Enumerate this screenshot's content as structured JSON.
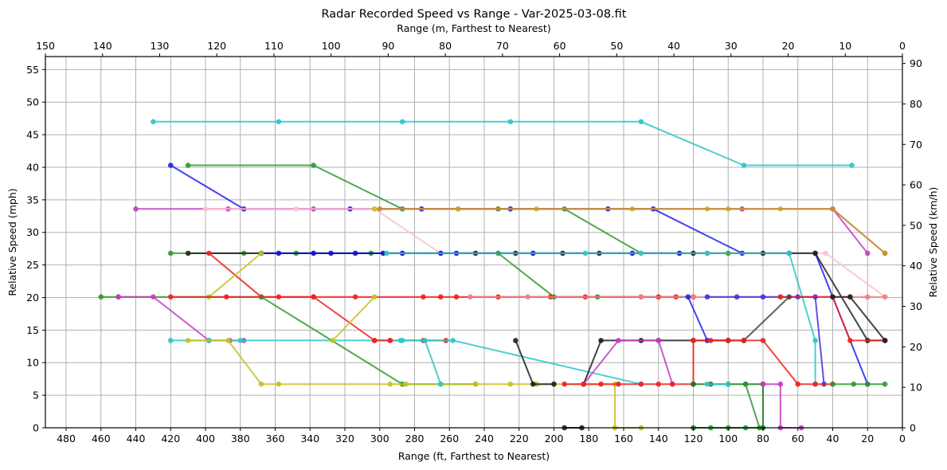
{
  "chart_data": {
    "type": "line",
    "title": "Radar Recorded Speed vs Range - Var-2025-03-08.fit",
    "xlabel": "Range (ft, Farthest to Nearest)",
    "xlabel_top": "Range (m, Farthest to Nearest)",
    "ylabel": "Relative Speed (mph)",
    "ylabel_right": "Relative Speed (km/h)",
    "xlim": [
      492,
      0
    ],
    "ylim": [
      0,
      57
    ],
    "xlim_top_m": [
      150,
      0
    ],
    "ylim_right_kmh": [
      0,
      91.7
    ],
    "x_ticks": [
      480,
      460,
      440,
      420,
      400,
      380,
      360,
      340,
      320,
      300,
      280,
      260,
      240,
      220,
      200,
      180,
      160,
      140,
      120,
      100,
      80,
      60,
      40,
      20,
      0
    ],
    "x_ticks_top": [
      150,
      140,
      130,
      120,
      110,
      100,
      90,
      80,
      70,
      60,
      50,
      40,
      30,
      20,
      10,
      0
    ],
    "y_ticks": [
      0,
      5,
      10,
      15,
      20,
      25,
      30,
      35,
      40,
      45,
      50,
      55
    ],
    "y_ticks_right": [
      0,
      10,
      20,
      30,
      40,
      50,
      60,
      70,
      80,
      90
    ],
    "grid": true,
    "legend": "none",
    "series": [
      {
        "name": "track-1",
        "color": "#2ec7c7",
        "points": [
          [
            430,
            47.0
          ],
          [
            358,
            47.0
          ],
          [
            287,
            47.0
          ],
          [
            225,
            47.0
          ],
          [
            150,
            47.0
          ],
          [
            91,
            40.3
          ],
          [
            29,
            40.3
          ]
        ]
      },
      {
        "name": "track-2",
        "color": "#2f9a2f",
        "points": [
          [
            410,
            40.3
          ],
          [
            338,
            40.3
          ],
          [
            287,
            33.6
          ],
          [
            232,
            33.6
          ],
          [
            194,
            33.6
          ],
          [
            150,
            26.8
          ],
          [
            112,
            26.8
          ],
          [
            100,
            26.8
          ]
        ]
      },
      {
        "name": "track-3",
        "color": "#2222ee",
        "points": [
          [
            420,
            40.3
          ],
          [
            378,
            33.6
          ],
          [
            317,
            33.6
          ],
          [
            276,
            33.6
          ],
          [
            225,
            33.6
          ],
          [
            169,
            33.6
          ],
          [
            143,
            33.6
          ],
          [
            92,
            26.8
          ],
          [
            65,
            26.8
          ],
          [
            50,
            26.8
          ],
          [
            40,
            20.1
          ],
          [
            20,
            6.7
          ]
        ]
      },
      {
        "name": "track-4",
        "color": "#c43cc4",
        "points": [
          [
            440,
            33.6
          ],
          [
            387,
            33.6
          ],
          [
            338,
            33.6
          ],
          [
            255,
            33.6
          ],
          [
            92,
            33.6
          ],
          [
            40,
            33.6
          ],
          [
            20,
            26.8
          ]
        ]
      },
      {
        "name": "track-5",
        "color": "#ffc0cb",
        "points": [
          [
            400,
            33.6
          ],
          [
            348,
            33.6
          ],
          [
            303,
            33.6
          ],
          [
            265,
            26.8
          ],
          [
            150,
            26.8
          ],
          [
            128,
            26.8
          ],
          [
            44,
            26.8
          ],
          [
            10,
            20.1
          ]
        ]
      },
      {
        "name": "track-6",
        "color": "#c8c020",
        "points": [
          [
            303,
            33.6
          ],
          [
            255,
            33.6
          ],
          [
            210,
            33.6
          ],
          [
            155,
            33.6
          ],
          [
            112,
            33.6
          ],
          [
            100,
            33.6
          ],
          [
            70,
            33.6
          ],
          [
            40,
            33.6
          ],
          [
            10,
            26.8
          ]
        ]
      },
      {
        "name": "track-7",
        "color": "#c88840",
        "points": [
          [
            300,
            33.6
          ],
          [
            40,
            33.6
          ],
          [
            10,
            26.8
          ]
        ]
      },
      {
        "name": "track-8",
        "color": "#2f9a2f",
        "points": [
          [
            420,
            26.8
          ],
          [
            378,
            26.8
          ],
          [
            348,
            26.8
          ],
          [
            305,
            26.8
          ],
          [
            232,
            26.8
          ],
          [
            200,
            20.1
          ],
          [
            175,
            20.1
          ],
          [
            120,
            20.1
          ]
        ]
      },
      {
        "name": "track-9",
        "color": "#222222",
        "points": [
          [
            410,
            26.8
          ],
          [
            368,
            26.8
          ],
          [
            245,
            26.8
          ],
          [
            222,
            26.8
          ],
          [
            195,
            26.8
          ],
          [
            174,
            26.8
          ],
          [
            120,
            26.8
          ],
          [
            80,
            26.8
          ],
          [
            50,
            26.8
          ],
          [
            20,
            13.4
          ],
          [
            10,
            13.4
          ]
        ]
      },
      {
        "name": "track-10",
        "color": "#ee2222",
        "points": [
          [
            398,
            26.8
          ],
          [
            368,
            20.1
          ],
          [
            338,
            20.1
          ],
          [
            303,
            13.4
          ],
          [
            294,
            13.4
          ],
          [
            275,
            13.4
          ],
          [
            262,
            13.4
          ]
        ]
      },
      {
        "name": "track-11",
        "color": "#1111cc",
        "points": [
          [
            368,
            26.8
          ],
          [
            358,
            26.8
          ],
          [
            338,
            26.8
          ],
          [
            328,
            26.8
          ],
          [
            314,
            26.8
          ],
          [
            298,
            26.8
          ],
          [
            287,
            26.8
          ],
          [
            265,
            26.8
          ],
          [
            256,
            26.8
          ],
          [
            212,
            26.8
          ],
          [
            155,
            26.8
          ],
          [
            128,
            26.8
          ]
        ]
      },
      {
        "name": "track-12",
        "color": "#2ec7c7",
        "points": [
          [
            296,
            26.8
          ],
          [
            182,
            26.8
          ],
          [
            150,
            26.8
          ],
          [
            112,
            26.8
          ],
          [
            65,
            26.8
          ],
          [
            50,
            13.4
          ],
          [
            50,
            6.7
          ]
        ]
      },
      {
        "name": "track-13",
        "color": "#c8c020",
        "points": [
          [
            398,
            20.1
          ],
          [
            368,
            26.8
          ]
        ]
      },
      {
        "name": "track-14",
        "color": "#2f9a2f",
        "points": [
          [
            460,
            20.1
          ],
          [
            450,
            20.1
          ],
          [
            368,
            20.1
          ],
          [
            287,
            6.7
          ],
          [
            265,
            6.7
          ],
          [
            245,
            6.7
          ]
        ]
      },
      {
        "name": "track-15",
        "color": "#c43cc4",
        "points": [
          [
            450,
            20.1
          ],
          [
            430,
            20.1
          ],
          [
            398,
            13.4
          ],
          [
            386,
            13.4
          ],
          [
            378,
            13.4
          ]
        ]
      },
      {
        "name": "track-16",
        "color": "#ee2222",
        "points": [
          [
            420,
            20.1
          ],
          [
            388,
            20.1
          ],
          [
            358,
            20.1
          ],
          [
            338,
            20.1
          ],
          [
            314,
            20.1
          ],
          [
            275,
            20.1
          ],
          [
            265,
            20.1
          ],
          [
            256,
            20.1
          ],
          [
            232,
            20.1
          ],
          [
            202,
            20.1
          ],
          [
            182,
            20.1
          ],
          [
            150,
            20.1
          ],
          [
            140,
            20.1
          ],
          [
            130,
            20.1
          ],
          [
            120,
            20.1
          ]
        ]
      },
      {
        "name": "track-17",
        "color": "#f08080",
        "points": [
          [
            248,
            20.1
          ],
          [
            215,
            20.1
          ],
          [
            150,
            20.1
          ],
          [
            120,
            20.1
          ],
          [
            70,
            20.1
          ],
          [
            40,
            20.1
          ],
          [
            30,
            20.1
          ],
          [
            20,
            20.1
          ],
          [
            10,
            20.1
          ]
        ]
      },
      {
        "name": "track-18",
        "color": "#2222ee",
        "points": [
          [
            123,
            20.1
          ],
          [
            112,
            13.4
          ],
          [
            100,
            13.4
          ]
        ]
      },
      {
        "name": "track-19",
        "color": "#4433dd",
        "points": [
          [
            112,
            20.1
          ],
          [
            95,
            20.1
          ],
          [
            80,
            20.1
          ],
          [
            60,
            20.1
          ],
          [
            50,
            20.1
          ],
          [
            45,
            6.7
          ]
        ]
      },
      {
        "name": "track-20",
        "color": "#ee2222",
        "points": [
          [
            70,
            20.1
          ],
          [
            40,
            20.1
          ],
          [
            30,
            13.4
          ],
          [
            10,
            13.4
          ]
        ]
      },
      {
        "name": "track-21",
        "color": "#222222",
        "points": [
          [
            40,
            20.1
          ],
          [
            30,
            20.1
          ],
          [
            10,
            13.4
          ]
        ]
      },
      {
        "name": "track-22",
        "color": "#444444",
        "points": [
          [
            91,
            13.4
          ],
          [
            65,
            20.1
          ]
        ]
      },
      {
        "name": "track-23",
        "color": "#2ec7c7",
        "points": [
          [
            420,
            13.4
          ],
          [
            398,
            13.4
          ],
          [
            380,
            13.4
          ],
          [
            288,
            13.4
          ],
          [
            258,
            13.4
          ],
          [
            150,
            6.7
          ]
        ]
      },
      {
        "name": "track-24",
        "color": "#c8c020",
        "points": [
          [
            410,
            13.4
          ],
          [
            387,
            13.4
          ],
          [
            368,
            6.7
          ],
          [
            358,
            6.7
          ],
          [
            294,
            6.7
          ],
          [
            285,
            6.7
          ],
          [
            265,
            6.7
          ],
          [
            245,
            6.7
          ],
          [
            225,
            6.7
          ],
          [
            210,
            6.7
          ],
          [
            200,
            6.7
          ],
          [
            165,
            6.7
          ],
          [
            165,
            0
          ],
          [
            150,
            0
          ]
        ]
      },
      {
        "name": "track-25",
        "color": "#c8c020",
        "points": [
          [
            327,
            13.4
          ],
          [
            303,
            20.1
          ]
        ]
      },
      {
        "name": "track-26",
        "color": "#2ec7c7",
        "points": [
          [
            287,
            13.4
          ],
          [
            274,
            13.4
          ],
          [
            265,
            6.7
          ]
        ]
      },
      {
        "name": "track-27",
        "color": "#ee2222",
        "points": [
          [
            303,
            13.4
          ],
          [
            294,
            13.4
          ]
        ]
      },
      {
        "name": "track-28",
        "color": "#222222",
        "points": [
          [
            222,
            13.4
          ],
          [
            212,
            6.7
          ],
          [
            200,
            6.7
          ]
        ]
      },
      {
        "name": "track-29",
        "color": "#222222",
        "points": [
          [
            183,
            6.7
          ],
          [
            173,
            13.4
          ],
          [
            150,
            13.4
          ],
          [
            140,
            13.4
          ],
          [
            120,
            13.4
          ],
          [
            100,
            13.4
          ],
          [
            91,
            13.4
          ]
        ]
      },
      {
        "name": "track-30",
        "color": "#c43cc4",
        "points": [
          [
            183,
            6.7
          ],
          [
            163,
            13.4
          ],
          [
            140,
            13.4
          ],
          [
            132,
            6.7
          ]
        ]
      },
      {
        "name": "track-31",
        "color": "#ee2222",
        "points": [
          [
            194,
            6.7
          ],
          [
            183,
            6.7
          ],
          [
            173,
            6.7
          ],
          [
            163,
            6.7
          ],
          [
            150,
            6.7
          ],
          [
            140,
            6.7
          ],
          [
            132,
            6.7
          ],
          [
            120,
            6.7
          ],
          [
            120,
            13.4
          ],
          [
            110,
            13.4
          ],
          [
            100,
            13.4
          ],
          [
            91,
            13.4
          ],
          [
            80,
            13.4
          ],
          [
            60,
            6.7
          ],
          [
            50,
            6.7
          ],
          [
            40,
            6.7
          ]
        ]
      },
      {
        "name": "track-32",
        "color": "#1a7a1a",
        "points": [
          [
            120,
            6.7
          ],
          [
            110,
            6.7
          ],
          [
            100,
            6.7
          ],
          [
            90,
            6.7
          ],
          [
            80,
            6.7
          ],
          [
            80,
            0
          ],
          [
            120,
            0
          ]
        ]
      },
      {
        "name": "track-33",
        "color": "#2f9a2f",
        "points": [
          [
            90,
            6.7
          ],
          [
            82,
            0
          ],
          [
            90,
            0
          ],
          [
            100,
            0
          ],
          [
            110,
            0
          ]
        ]
      },
      {
        "name": "track-34",
        "color": "#c43cc4",
        "points": [
          [
            80,
            6.7
          ],
          [
            70,
            6.7
          ],
          [
            70,
            0
          ],
          [
            58,
            0
          ]
        ]
      },
      {
        "name": "track-35",
        "color": "#2f9a2f",
        "points": [
          [
            40,
            6.7
          ],
          [
            28,
            6.7
          ],
          [
            20,
            6.7
          ],
          [
            10,
            6.7
          ]
        ]
      },
      {
        "name": "track-36",
        "color": "#222222",
        "points": [
          [
            194,
            0
          ],
          [
            184,
            0
          ]
        ]
      },
      {
        "name": "track-37",
        "color": "#2ec7c7",
        "points": [
          [
            112,
            6.7
          ],
          [
            100,
            6.7
          ]
        ]
      }
    ]
  }
}
